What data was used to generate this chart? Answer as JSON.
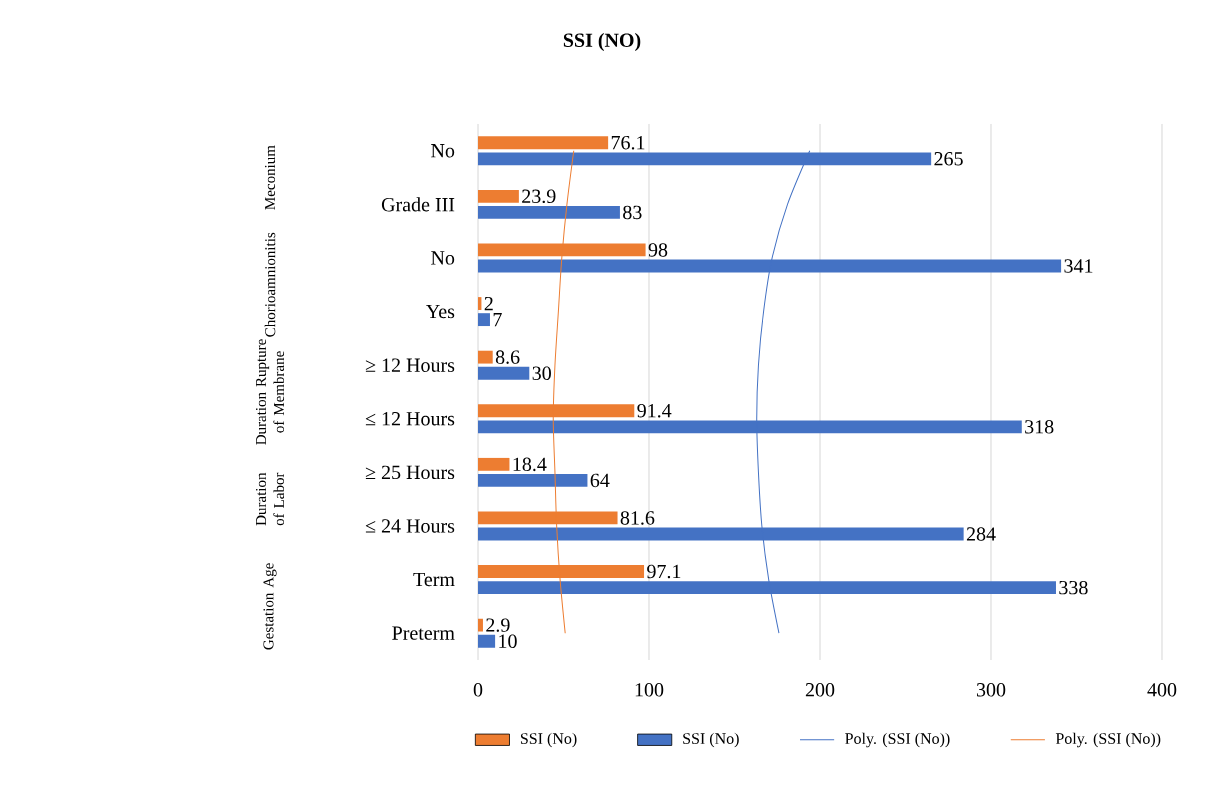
{
  "chart_data": {
    "type": "bar",
    "orientation": "horizontal",
    "title": "SSI (NO)",
    "categories": [
      "No",
      "Grade III",
      "No",
      "Yes",
      "≥ 12 Hours",
      "≤ 12 Hours",
      "≥ 25 Hours",
      "≤ 24 Hours",
      "Term",
      "Preterm"
    ],
    "annotations": [
      "Meconium",
      "Chorioamnionitis",
      "Duration Rupture of Membrane",
      "Duration of Labor",
      "Gestation Age"
    ],
    "series": [
      {
        "name": "SSI (No)",
        "color": "#ed7d31",
        "values": [
          76.1,
          23.9,
          98,
          2,
          8.6,
          91.4,
          18.4,
          81.6,
          97.1,
          2.9
        ],
        "value_labels": [
          "76.1",
          "23.9",
          "98",
          "2",
          "8.6",
          "91.4",
          "18.4",
          "81.6",
          "97.1",
          "2.9"
        ]
      },
      {
        "name": "SSI (No)",
        "color": "#4472c4",
        "values": [
          265,
          83,
          341,
          7,
          30,
          318,
          64,
          284,
          338,
          10
        ],
        "value_labels": [
          "265",
          "83",
          "341",
          "7",
          "30",
          "318",
          "64",
          "284",
          "338",
          "10"
        ]
      },
      {
        "name": "Poly. (SSI (No))",
        "type": "line",
        "color": "#4472c4",
        "values": [
          194,
          181,
          172,
          167,
          164,
          163,
          164,
          166,
          170,
          176
        ]
      },
      {
        "name": "Poly. (SSI (No))",
        "type": "line",
        "color": "#ed7d31",
        "values": [
          56,
          52,
          49,
          47,
          45,
          44,
          45,
          46,
          48,
          51
        ]
      }
    ],
    "xlim": [
      0,
      400
    ],
    "xticks": [
      0,
      100,
      200,
      300,
      400
    ],
    "grid": "x",
    "legend": "bottom",
    "marker": "none"
  }
}
